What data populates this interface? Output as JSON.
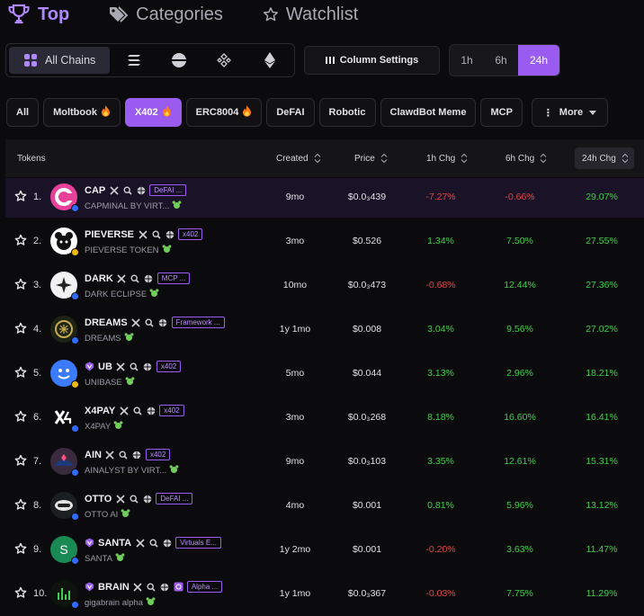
{
  "nav": {
    "top": "Top",
    "categories": "Categories",
    "watchlist": "Watchlist"
  },
  "chains": {
    "all_label": "All Chains",
    "icons": [
      "solana-icon",
      "base-icon",
      "bnb-icon",
      "ethereum-icon"
    ]
  },
  "toolbar": {
    "column_settings": "Column Settings",
    "timeframes": [
      "1h",
      "6h",
      "24h"
    ],
    "active_timeframe": "24h"
  },
  "categories": [
    {
      "label": "All",
      "fire": false,
      "active": false
    },
    {
      "label": "Moltbook",
      "fire": true,
      "active": false
    },
    {
      "label": "X402",
      "fire": true,
      "active": true
    },
    {
      "label": "ERC8004",
      "fire": true,
      "active": false
    },
    {
      "label": "DeFAI",
      "fire": false,
      "active": false
    },
    {
      "label": "Robotic",
      "fire": false,
      "active": false
    },
    {
      "label": "ClawdBot Meme",
      "fire": false,
      "active": false
    },
    {
      "label": "MCP",
      "fire": false,
      "active": false
    }
  ],
  "more_label": "More",
  "table": {
    "headers": {
      "tokens": "Tokens",
      "created": "Created",
      "price": "Price",
      "chg1h": "1h Chg",
      "chg6h": "6h Chg",
      "chg24h": "24h Chg"
    },
    "rows": [
      {
        "rank": "1.",
        "symbol": "CAP",
        "name": "CAPMINAL BY VIRT...",
        "tag": "DeFAI ...",
        "created": "9mo",
        "price_html": "$0.0<sub>3</sub>439",
        "price": "$0.0₃439",
        "chg1h": "-7.27%",
        "chg6h": "-0.66%",
        "chg24h": "29.07%"
      },
      {
        "rank": "2.",
        "symbol": "PIEVERSE",
        "name": "PIEVERSE TOKEN",
        "tag": "x402",
        "created": "3mo",
        "price": "$0.526",
        "chg1h": "1.34%",
        "chg6h": "7.50%",
        "chg24h": "27.55%"
      },
      {
        "rank": "3.",
        "symbol": "DARK",
        "name": "DARK ECLIPSE",
        "tag": "MCP ...",
        "created": "10mo",
        "price": "$0.0₃473",
        "chg1h": "-0.68%",
        "chg6h": "12.44%",
        "chg24h": "27.36%"
      },
      {
        "rank": "4.",
        "symbol": "DREAMS",
        "name": "DREAMS",
        "tag": "Framework ...",
        "created": "1y 1mo",
        "price": "$0.008",
        "chg1h": "3.04%",
        "chg6h": "9.56%",
        "chg24h": "27.02%"
      },
      {
        "rank": "5.",
        "symbol": "UB",
        "name": "UNIBASE",
        "tag": "x402",
        "created": "5mo",
        "price": "$0.044",
        "chg1h": "3.13%",
        "chg6h": "2.96%",
        "chg24h": "18.21%"
      },
      {
        "rank": "6.",
        "symbol": "X4PAY",
        "name": "X4PAY",
        "tag": "x402",
        "created": "3mo",
        "price": "$0.0₃268",
        "chg1h": "8.18%",
        "chg6h": "16.60%",
        "chg24h": "16.41%"
      },
      {
        "rank": "7.",
        "symbol": "AIN",
        "name": "AINALYST BY VIRT...",
        "tag": "x402",
        "created": "9mo",
        "price": "$0.0₃103",
        "chg1h": "3.35%",
        "chg6h": "12.61%",
        "chg24h": "15.31%"
      },
      {
        "rank": "8.",
        "symbol": "OTTO",
        "name": "OTTO AI",
        "tag": "DeFAI ...",
        "created": "4mo",
        "price": "$0.001",
        "chg1h": "0.81%",
        "chg6h": "5.96%",
        "chg24h": "13.12%"
      },
      {
        "rank": "9.",
        "symbol": "SANTA",
        "name": "SANTA",
        "tag": "Virtuals E...",
        "created": "1y 2mo",
        "price": "$0.001",
        "chg1h": "-0.20%",
        "chg6h": "3.63%",
        "chg24h": "11.47%"
      },
      {
        "rank": "10.",
        "symbol": "BRAIN",
        "name": "gigabrain alpha",
        "tag": "Alpha ...",
        "created": "1y 1mo",
        "price": "$0.0₃367",
        "chg1h": "-0.03%",
        "chg6h": "7.75%",
        "chg24h": "11.29%"
      }
    ]
  },
  "logo_letters": {
    "santa": "S"
  },
  "colors": {
    "accent": "#9a5cf0",
    "positive": "#3fcf4a",
    "negative": "#e0454a"
  }
}
